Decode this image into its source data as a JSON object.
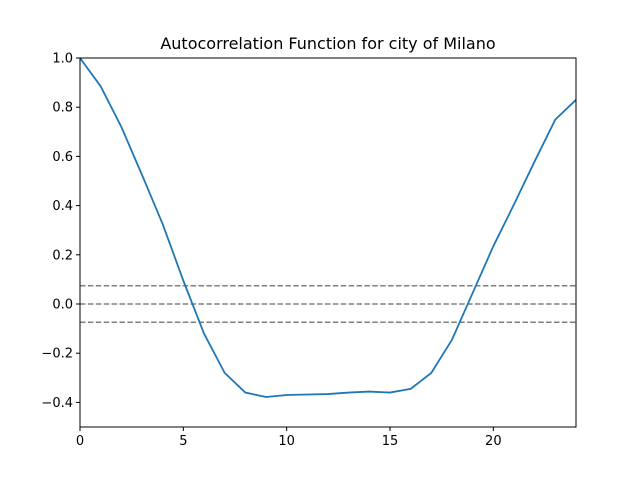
{
  "chart_data": {
    "type": "line",
    "title": "Autocorrelation Function for city of Milano",
    "xlabel": "",
    "ylabel": "",
    "xlim": [
      0,
      24
    ],
    "ylim": [
      -0.5,
      1.0
    ],
    "x_ticks": [
      0,
      5,
      10,
      15,
      20
    ],
    "y_ticks": [
      1.0,
      0.8,
      0.6,
      0.4,
      0.2,
      0.0,
      -0.2,
      -0.4
    ],
    "x_tick_labels": [
      "0",
      "5",
      "10",
      "15",
      "20"
    ],
    "y_tick_labels": [
      "1.0",
      "0.8",
      "0.6",
      "0.4",
      "0.2",
      "0.0",
      "−0.2",
      "−0.4"
    ],
    "grid": false,
    "series": [
      {
        "color": "#1f77b4",
        "x": [
          0,
          1,
          2,
          3,
          4,
          5,
          6,
          7,
          8,
          9,
          10,
          11,
          12,
          13,
          14,
          15,
          16,
          17,
          18,
          19,
          20,
          21,
          22,
          23,
          24
        ],
        "y": [
          1.0,
          0.885,
          0.72,
          0.525,
          0.325,
          0.095,
          -0.12,
          -0.28,
          -0.36,
          -0.378,
          -0.37,
          -0.368,
          -0.366,
          -0.36,
          -0.356,
          -0.36,
          -0.345,
          -0.28,
          -0.145,
          0.045,
          0.235,
          0.405,
          0.58,
          0.75,
          0.83
        ]
      }
    ],
    "reference_lines": [
      {
        "y": 0.074,
        "color": "#808080",
        "style": "dashed"
      },
      {
        "y": 0.0,
        "color": "#808080",
        "style": "dashed"
      },
      {
        "y": -0.074,
        "color": "#808080",
        "style": "dashed"
      }
    ]
  }
}
